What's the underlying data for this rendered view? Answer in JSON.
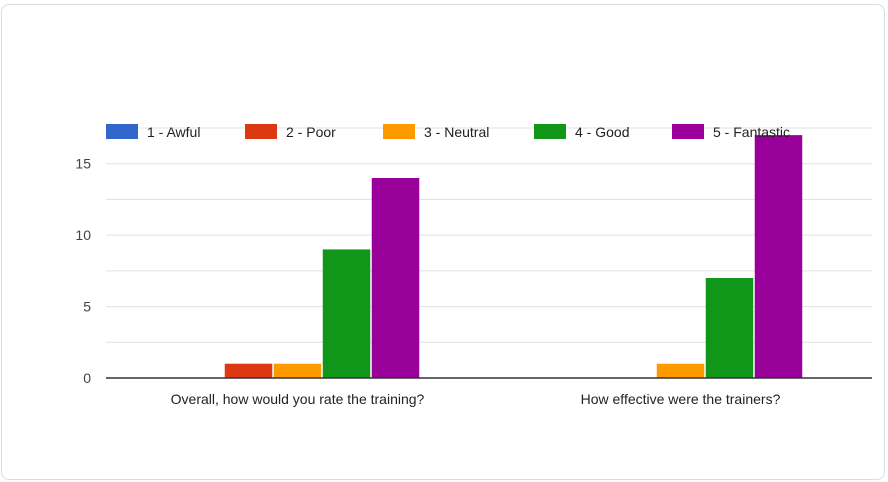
{
  "chart_data": {
    "type": "bar",
    "categories": [
      "Overall, how would you rate the training?",
      "How effective were the trainers?"
    ],
    "series": [
      {
        "name": "1 - Awful",
        "color": "#3366cc",
        "values": [
          0,
          0
        ]
      },
      {
        "name": "2 - Poor",
        "color": "#dc3912",
        "values": [
          1,
          0
        ]
      },
      {
        "name": "3 - Neutral",
        "color": "#ff9900",
        "values": [
          1,
          1
        ]
      },
      {
        "name": "4 - Good",
        "color": "#109618",
        "values": [
          9,
          7
        ]
      },
      {
        "name": "5 - Fantastic",
        "color": "#990099",
        "values": [
          14,
          17
        ]
      }
    ],
    "yticks": [
      0,
      5,
      10,
      15
    ],
    "ylim": [
      0,
      17.5
    ],
    "grid": true,
    "legend_position": "top",
    "title": "",
    "xlabel": "",
    "ylabel": ""
  }
}
